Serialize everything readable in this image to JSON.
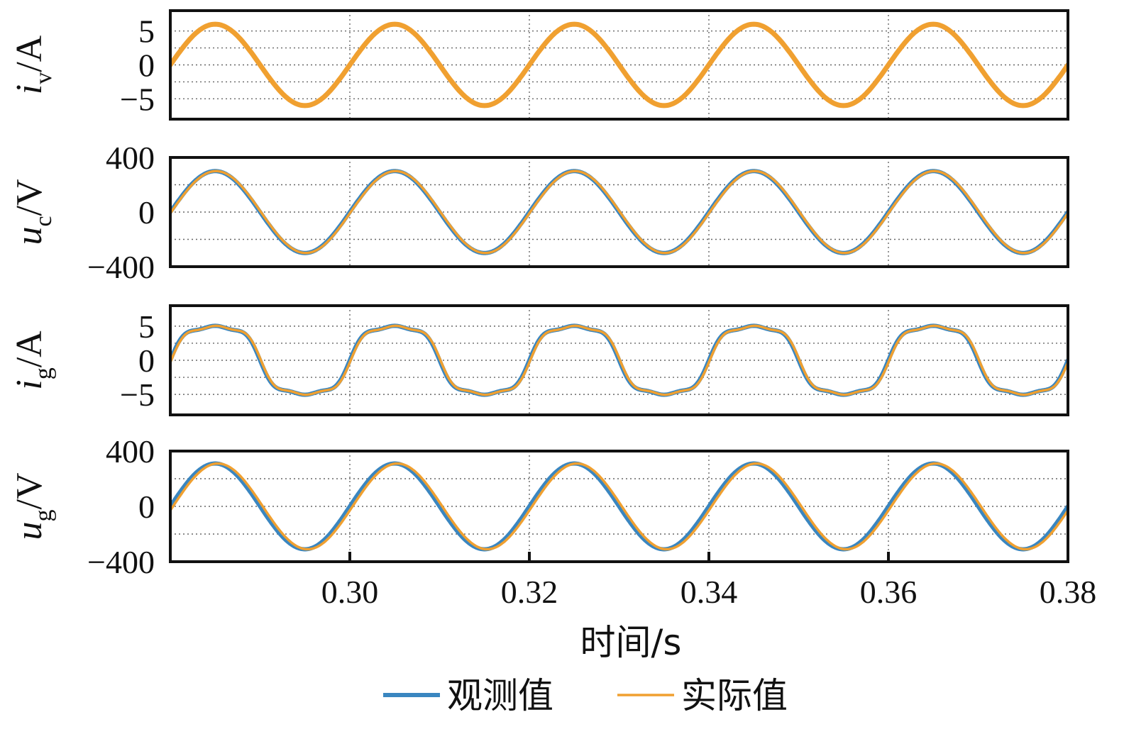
{
  "chart_data": {
    "type": "line",
    "x_range": [
      0.28,
      0.38
    ],
    "x_ticks": [
      0.3,
      0.32,
      0.34,
      0.36,
      0.38
    ],
    "x_tick_labels": [
      "0.30",
      "0.32",
      "0.34",
      "0.36",
      "0.38"
    ],
    "xlabel": "时间/s",
    "grid": true,
    "legend_position": "bottom-center",
    "colors": {
      "observed": "#3a86c0",
      "actual": "#f0a030"
    },
    "legend": [
      {
        "name": "观测值",
        "color": "#3a86c0"
      },
      {
        "name": "实际值",
        "color": "#f0a030"
      }
    ],
    "panels": [
      {
        "id": "iv",
        "ylabel": {
          "symbol": "i",
          "subscript": "v",
          "unit": "/A"
        },
        "ylim": [
          -8,
          8
        ],
        "yticks": [
          5,
          0,
          -5
        ],
        "ytick_labels": [
          "5",
          "0",
          "−5"
        ],
        "series": [
          {
            "name": "实际值",
            "waveform": "sine",
            "amplitude": 6,
            "frequency_hz": 50,
            "phase_zero_t": 0.28,
            "harmonics": []
          }
        ]
      },
      {
        "id": "uc",
        "ylabel": {
          "symbol": "u",
          "subscript": "c",
          "unit": "/V"
        },
        "ylim": [
          -400,
          400
        ],
        "yticks": [
          400,
          0,
          -400
        ],
        "ytick_labels": [
          "400",
          "0",
          "−400"
        ],
        "series": [
          {
            "name": "观测值",
            "waveform": "sine",
            "amplitude": 300,
            "frequency_hz": 50,
            "phase_zero_t": 0.28,
            "harmonics": []
          },
          {
            "name": "实际值",
            "waveform": "sine",
            "amplitude": 300,
            "frequency_hz": 50,
            "phase_zero_t": 0.2801,
            "harmonics": []
          }
        ]
      },
      {
        "id": "ig",
        "ylabel": {
          "symbol": "i",
          "subscript": "g",
          "unit": "/A"
        },
        "ylim": [
          -8,
          8
        ],
        "yticks": [
          5,
          0,
          -5
        ],
        "ytick_labels": [
          "5",
          "0",
          "−5"
        ],
        "series": [
          {
            "name": "观测值",
            "waveform": "sine",
            "amplitude": 5.6,
            "frequency_hz": 50,
            "phase_zero_t": 0.28,
            "harmonics": [
              {
                "order": 3,
                "amplitude": 0.9
              },
              {
                "order": 5,
                "amplitude": 0.35
              }
            ]
          },
          {
            "name": "实际值",
            "waveform": "sine",
            "amplitude": 5.6,
            "frequency_hz": 50,
            "phase_zero_t": 0.2801,
            "harmonics": [
              {
                "order": 3,
                "amplitude": 0.9
              },
              {
                "order": 5,
                "amplitude": 0.35
              }
            ]
          }
        ]
      },
      {
        "id": "ug",
        "ylabel": {
          "symbol": "u",
          "subscript": "g",
          "unit": "/V"
        },
        "ylim": [
          -400,
          400
        ],
        "yticks": [
          400,
          0,
          -400
        ],
        "ytick_labels": [
          "400",
          "0",
          "−400"
        ],
        "series": [
          {
            "name": "观测值",
            "waveform": "sine",
            "amplitude": 310,
            "frequency_hz": 50,
            "phase_zero_t": 0.28,
            "harmonics": []
          },
          {
            "name": "实际值",
            "waveform": "sine",
            "amplitude": 310,
            "frequency_hz": 50,
            "phase_zero_t": 0.2803,
            "harmonics": []
          }
        ]
      }
    ]
  }
}
